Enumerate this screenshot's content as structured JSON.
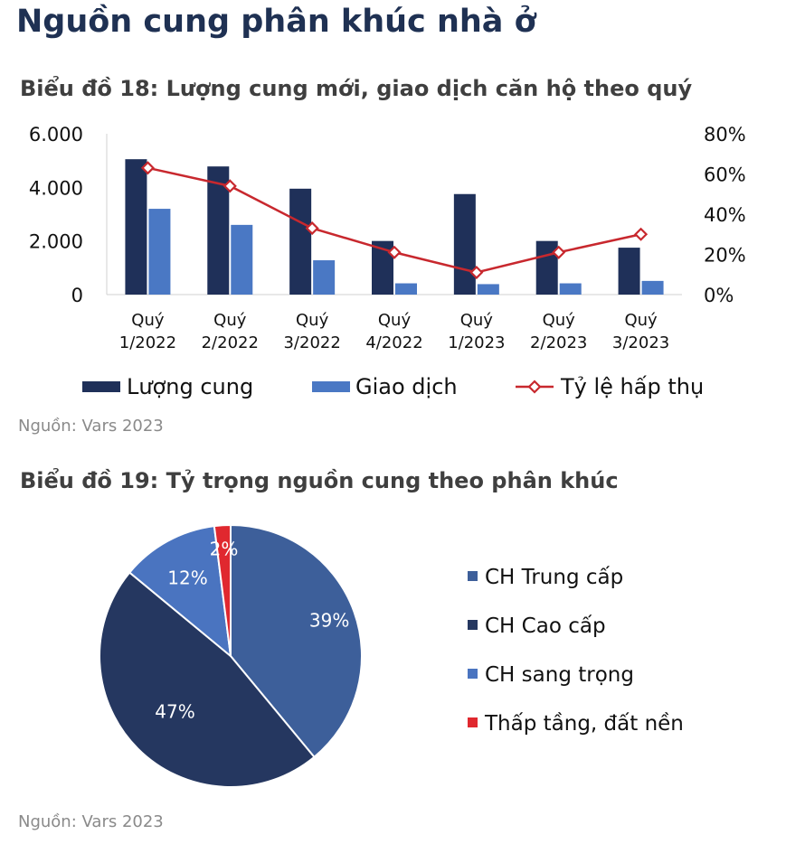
{
  "page": {
    "title": "Nguồn cung phân khúc nhà ở"
  },
  "chart18": {
    "title": "Biểu đồ 18: Lượng cung mới, giao dịch căn hộ theo quý",
    "source": "Nguồn: Vars 2023"
  },
  "chart19": {
    "title": "Biểu đồ 19: Tỷ trọng nguồn cung theo phân khúc",
    "source": "Nguồn: Vars 2023"
  },
  "chart_data": [
    {
      "type": "bar",
      "title": "Biểu đồ 18: Lượng cung mới, giao dịch căn hộ theo quý",
      "categories": [
        [
          "Quý",
          "1/2022"
        ],
        [
          "Quý",
          "2/2022"
        ],
        [
          "Quý",
          "3/2022"
        ],
        [
          "Quý",
          "4/2022"
        ],
        [
          "Quý",
          "1/2023"
        ],
        [
          "Quý",
          "2/2023"
        ],
        [
          "Quý",
          "3/2023"
        ]
      ],
      "y_left": {
        "ylim": [
          0,
          6000
        ],
        "ticks": [
          "0",
          "2.000",
          "4.000",
          "6.000"
        ],
        "tick_values": [
          0,
          2000,
          4000,
          6000
        ]
      },
      "y_right": {
        "ylim": [
          0,
          80
        ],
        "ticks": [
          "0%",
          "20%",
          "40%",
          "60%",
          "80%"
        ],
        "tick_values": [
          0,
          20,
          40,
          60,
          80
        ]
      },
      "series": [
        {
          "name": "Lượng cung",
          "kind": "bar",
          "axis": "left",
          "color": "#1f3059",
          "values": [
            5050,
            4780,
            3950,
            2000,
            3750,
            2000,
            1750
          ]
        },
        {
          "name": "Giao dịch",
          "kind": "bar",
          "axis": "left",
          "color": "#4a78c4",
          "values": [
            3200,
            2600,
            1280,
            420,
            390,
            420,
            510
          ]
        },
        {
          "name": "Tỷ lệ hấp thụ",
          "kind": "line",
          "axis": "right",
          "color": "#c8282e",
          "values": [
            63,
            54,
            33,
            21,
            11,
            21,
            30
          ]
        }
      ],
      "legend": "bottom",
      "grid": false
    },
    {
      "type": "pie",
      "title": "Biểu đồ 19: Tỷ trọng nguồn cung theo phân khúc",
      "slices": [
        {
          "label": "CH Trung cấp",
          "value": 39,
          "display": "39%",
          "color": "#3d5f9a"
        },
        {
          "label": "CH Cao cấp",
          "value": 47,
          "display": "47%",
          "color": "#253760"
        },
        {
          "label": "CH sang trọng",
          "value": 12,
          "display": "12%",
          "color": "#4a74c0"
        },
        {
          "label": "Thấp tầng, đất nền",
          "value": 2,
          "display": "2%",
          "color": "#e0282f"
        }
      ],
      "legend": "right"
    }
  ]
}
